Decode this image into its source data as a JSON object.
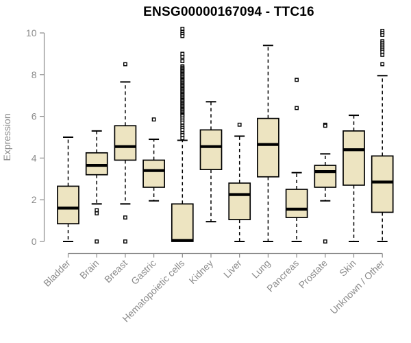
{
  "chart_data": {
    "type": "boxplot",
    "title": "ENSG00000167094 - TTC16",
    "xlabel": "",
    "ylabel": "Expression",
    "ylim": [
      0,
      10
    ],
    "yticks": [
      0,
      2,
      4,
      6,
      8,
      10
    ],
    "grid": false,
    "legend": "none",
    "categories": [
      "Bladder",
      "Brain",
      "Breast",
      "Gastric",
      "Hematopoietic cells",
      "Kidney",
      "Liver",
      "Lung",
      "Pancreas",
      "Prostate",
      "Skin",
      "Unknown / Other"
    ],
    "series": [
      {
        "name": "Bladder",
        "whisker_low": 0.0,
        "q1": 0.85,
        "median": 1.6,
        "q3": 2.65,
        "whisker_high": 5.0,
        "outliers": []
      },
      {
        "name": "Brain",
        "whisker_low": 1.8,
        "q1": 3.2,
        "median": 3.65,
        "q3": 4.25,
        "whisker_high": 5.3,
        "outliers": [
          1.5,
          1.35,
          0.0
        ]
      },
      {
        "name": "Breast",
        "whisker_low": 1.8,
        "q1": 3.9,
        "median": 4.55,
        "q3": 5.55,
        "whisker_high": 7.65,
        "outliers": [
          8.5,
          1.15,
          0.0
        ]
      },
      {
        "name": "Gastric",
        "whisker_low": 1.95,
        "q1": 2.6,
        "median": 3.4,
        "q3": 3.9,
        "whisker_high": 4.9,
        "outliers": [
          5.85
        ]
      },
      {
        "name": "Hematopoietic cells",
        "whisker_low": 0.0,
        "q1": 0.0,
        "median": 0.05,
        "q3": 1.8,
        "whisker_high": 4.85,
        "outliers": [
          10.2,
          10.05,
          9.95,
          9.85,
          9.0,
          8.85,
          8.65,
          8.4,
          8.34,
          8.28,
          8.22,
          8.16,
          8.1,
          8.04,
          7.98,
          7.92,
          7.86,
          7.8,
          7.74,
          7.68,
          7.62,
          7.56,
          7.5,
          7.44,
          7.38,
          7.32,
          7.26,
          7.2,
          7.14,
          7.08,
          7.02,
          6.96,
          6.9,
          6.84,
          6.78,
          6.72,
          6.66,
          6.6,
          6.54,
          6.48,
          6.42,
          6.36,
          6.3,
          6.24,
          6.18,
          6.12,
          6.06,
          6.0,
          5.9,
          5.8,
          5.7,
          5.55,
          5.45,
          5.35,
          5.2,
          5.1,
          4.95
        ]
      },
      {
        "name": "Kidney",
        "whisker_low": 0.95,
        "q1": 3.45,
        "median": 4.55,
        "q3": 5.35,
        "whisker_high": 6.7,
        "outliers": []
      },
      {
        "name": "Liver",
        "whisker_low": 0.0,
        "q1": 1.05,
        "median": 2.25,
        "q3": 2.8,
        "whisker_high": 5.05,
        "outliers": [
          5.6
        ]
      },
      {
        "name": "Lung",
        "whisker_low": 0.0,
        "q1": 3.1,
        "median": 4.65,
        "q3": 5.9,
        "whisker_high": 9.4,
        "outliers": []
      },
      {
        "name": "Pancreas",
        "whisker_low": 0.0,
        "q1": 1.15,
        "median": 1.55,
        "q3": 2.5,
        "whisker_high": 3.3,
        "outliers": [
          7.75,
          6.4
        ]
      },
      {
        "name": "Prostate",
        "whisker_low": 1.95,
        "q1": 2.6,
        "median": 3.35,
        "q3": 3.65,
        "whisker_high": 4.2,
        "outliers": [
          5.6,
          5.55,
          0.0
        ]
      },
      {
        "name": "Skin",
        "whisker_low": 0.0,
        "q1": 2.7,
        "median": 4.4,
        "q3": 5.3,
        "whisker_high": 6.05,
        "outliers": []
      },
      {
        "name": "Unknown / Other",
        "whisker_low": 0.0,
        "q1": 1.4,
        "median": 2.85,
        "q3": 4.1,
        "whisker_high": 7.95,
        "outliers": [
          10.1,
          10.0,
          9.9,
          9.6,
          9.5,
          9.4,
          9.3,
          9.2,
          9.1,
          8.95,
          8.5
        ]
      }
    ],
    "colors": {
      "box_fill": "#EDE4C1",
      "box_stroke": "#000000",
      "median": "#000000",
      "whisker": "#000000",
      "outlier_stroke": "#000000",
      "outlier_fill": "#ffffff",
      "axis": "#8a8a8a",
      "tick_label": "#8a8a8a",
      "title": "#000000",
      "background": "#ffffff"
    }
  }
}
